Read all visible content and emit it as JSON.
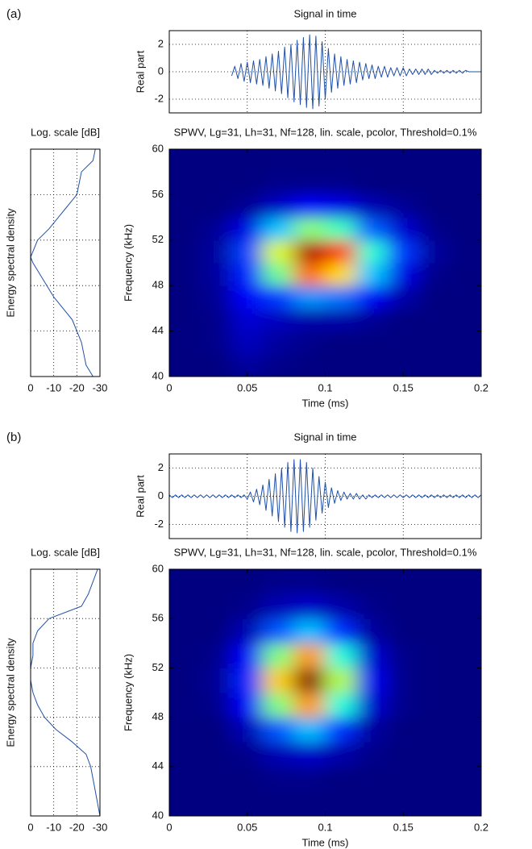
{
  "chart_data": [
    {
      "type": "line",
      "label": "(a)",
      "title": "Signal in time",
      "ylabel": "Real part",
      "color": "#2050a8",
      "grid": true,
      "xtick_labels": false,
      "xlim": [
        0,
        0.2
      ],
      "ylim": [
        -3,
        3
      ],
      "xticks": [
        0.05,
        0.1,
        0.15
      ],
      "yticks": [
        -2,
        0,
        2
      ],
      "x": [
        0,
        0.002,
        0.004,
        0.006,
        0.008,
        0.01,
        0.012,
        0.014,
        0.016,
        0.018,
        0.02,
        0.022,
        0.024,
        0.026,
        0.028,
        0.03,
        0.032,
        0.034,
        0.036,
        0.038,
        0.04,
        0.042,
        0.044,
        0.046,
        0.048,
        0.05,
        0.052,
        0.054,
        0.056,
        0.058,
        0.06,
        0.062,
        0.064,
        0.066,
        0.068,
        0.07,
        0.072,
        0.074,
        0.076,
        0.078,
        0.08,
        0.082,
        0.084,
        0.086,
        0.088,
        0.09,
        0.092,
        0.094,
        0.096,
        0.098,
        0.1,
        0.102,
        0.104,
        0.106,
        0.108,
        0.11,
        0.112,
        0.114,
        0.116,
        0.118,
        0.12,
        0.122,
        0.124,
        0.126,
        0.128,
        0.13,
        0.132,
        0.134,
        0.136,
        0.138,
        0.14,
        0.142,
        0.144,
        0.146,
        0.148,
        0.15,
        0.152,
        0.154,
        0.156,
        0.158,
        0.16,
        0.162,
        0.164,
        0.166,
        0.168,
        0.17,
        0.172,
        0.174,
        0.176,
        0.178,
        0.18,
        0.182,
        0.184,
        0.186,
        0.188,
        0.19,
        0.192,
        0.194,
        0.196,
        0.198,
        0.2
      ],
      "values": [
        null,
        null,
        null,
        null,
        null,
        null,
        null,
        null,
        null,
        null,
        null,
        null,
        null,
        null,
        null,
        null,
        null,
        null,
        null,
        null,
        -0.3,
        0.4,
        -0.5,
        0.6,
        -0.7,
        0.7,
        -0.8,
        0.8,
        -0.9,
        0.9,
        -1.0,
        1.1,
        -1.2,
        1.3,
        -1.4,
        1.5,
        -1.6,
        1.8,
        -1.9,
        2.0,
        -2.2,
        2.3,
        -2.4,
        2.5,
        -2.6,
        2.7,
        -2.7,
        2.6,
        -2.5,
        2.2,
        -2.0,
        1.7,
        -1.5,
        1.3,
        -1.2,
        1.1,
        -1.0,
        0.9,
        -0.9,
        0.8,
        -0.8,
        0.7,
        -0.6,
        0.6,
        -0.5,
        0.5,
        -0.5,
        0.4,
        -0.4,
        0.4,
        -0.4,
        0.3,
        -0.3,
        0.3,
        -0.3,
        0.3,
        -0.3,
        0.2,
        -0.2,
        0.2,
        -0.2,
        0.2,
        -0.2,
        0.2,
        -0.2,
        0.1,
        -0.1,
        0.1,
        -0.1,
        0.1,
        -0.1,
        0.1,
        -0.1,
        0.1,
        -0.1,
        0.1,
        0,
        0,
        0,
        0,
        0
      ]
    },
    {
      "type": "line",
      "orientation": "vertical",
      "title": "Log. scale [dB]",
      "ylabel": "Energy spectral density",
      "color": "#2050a8",
      "grid": true,
      "ytick_labels": false,
      "xlim": [
        0,
        -30
      ],
      "ylim": [
        40,
        60
      ],
      "xticks": [
        0,
        -10,
        -20,
        -30
      ],
      "yticks": [
        44,
        48,
        52,
        56
      ],
      "y": [
        40,
        41,
        42,
        43,
        44,
        45,
        46,
        47,
        48,
        49,
        50,
        50.5,
        51,
        52,
        53,
        54,
        55,
        56,
        57,
        58,
        59,
        60
      ],
      "values": [
        -27,
        -24,
        -23,
        -22,
        -20,
        -18,
        -14,
        -10,
        -7,
        -4,
        -1,
        0,
        -1,
        -3,
        -8,
        -12,
        -16,
        -20,
        -21,
        -22,
        -27,
        -28
      ]
    },
    {
      "type": "heatmap",
      "title": "SPWV, Lg=31, Lh=31, Nf=128, lin. scale, pcolor, Threshold=0.1%",
      "xlabel": "Time (ms)",
      "ylabel": "Frequency (kHz)",
      "colormap": "jet",
      "xlim": [
        0,
        0.2
      ],
      "ylim": [
        40,
        60
      ],
      "xticks": [
        0,
        0.05,
        0.1,
        0.15,
        0.2
      ],
      "yticks": [
        40,
        44,
        48,
        52,
        56,
        60
      ],
      "x": [
        0.01,
        0.03,
        0.05,
        0.07,
        0.09,
        0.11,
        0.13,
        0.15,
        0.17,
        0.19
      ],
      "y": [
        41,
        43,
        45,
        47,
        49,
        51,
        53,
        55,
        57,
        59
      ],
      "z": [
        [
          0,
          0,
          0.03,
          0.01,
          0,
          0,
          0,
          0,
          0,
          0
        ],
        [
          0,
          0.01,
          0.06,
          0.03,
          0.01,
          0,
          0,
          0,
          0,
          0
        ],
        [
          0,
          0.01,
          0.08,
          0.06,
          0.04,
          0.04,
          0.02,
          0,
          0,
          0
        ],
        [
          0,
          0.02,
          0.12,
          0.18,
          0.27,
          0.24,
          0.12,
          0.04,
          0,
          0
        ],
        [
          0,
          0.03,
          0.16,
          0.48,
          0.77,
          0.66,
          0.32,
          0.1,
          0.01,
          0
        ],
        [
          0,
          0.03,
          0.19,
          0.59,
          0.95,
          0.81,
          0.42,
          0.18,
          0.03,
          0
        ],
        [
          0,
          0.02,
          0.1,
          0.32,
          0.51,
          0.44,
          0.22,
          0.08,
          0.01,
          0
        ],
        [
          0,
          0,
          0.02,
          0.07,
          0.12,
          0.1,
          0.05,
          0.02,
          0,
          0
        ],
        [
          0,
          0,
          0,
          0.01,
          0.01,
          0.01,
          0,
          0,
          0,
          0
        ],
        [
          0,
          0,
          0,
          0,
          0,
          0,
          0,
          0,
          0,
          0
        ]
      ]
    },
    {
      "type": "line",
      "label": "(b)",
      "title": "Signal in time",
      "ylabel": "Real part",
      "color": "#2050a8",
      "grid": true,
      "xtick_labels": false,
      "xlim": [
        0,
        0.2
      ],
      "ylim": [
        -3,
        3
      ],
      "xticks": [
        0.05,
        0.1,
        0.15
      ],
      "yticks": [
        -2,
        0,
        2
      ],
      "x": [
        0,
        0.002,
        0.004,
        0.006,
        0.008,
        0.01,
        0.012,
        0.014,
        0.016,
        0.018,
        0.02,
        0.022,
        0.024,
        0.026,
        0.028,
        0.03,
        0.032,
        0.034,
        0.036,
        0.038,
        0.04,
        0.042,
        0.044,
        0.046,
        0.048,
        0.05,
        0.052,
        0.054,
        0.056,
        0.058,
        0.06,
        0.062,
        0.064,
        0.066,
        0.068,
        0.07,
        0.072,
        0.074,
        0.076,
        0.078,
        0.08,
        0.082,
        0.084,
        0.086,
        0.088,
        0.09,
        0.092,
        0.094,
        0.096,
        0.098,
        0.1,
        0.102,
        0.104,
        0.106,
        0.108,
        0.11,
        0.112,
        0.114,
        0.116,
        0.118,
        0.12,
        0.122,
        0.124,
        0.126,
        0.128,
        0.13,
        0.132,
        0.134,
        0.136,
        0.138,
        0.14,
        0.142,
        0.144,
        0.146,
        0.148,
        0.15,
        0.152,
        0.154,
        0.156,
        0.158,
        0.16,
        0.162,
        0.164,
        0.166,
        0.168,
        0.17,
        0.172,
        0.174,
        0.176,
        0.178,
        0.18,
        0.182,
        0.184,
        0.186,
        0.188,
        0.19,
        0.192,
        0.194,
        0.196,
        0.198,
        0.2
      ],
      "values": [
        0.1,
        -0.1,
        0.1,
        -0.1,
        0.1,
        -0.1,
        0.1,
        -0.1,
        0.1,
        -0.1,
        0.1,
        -0.1,
        0.1,
        -0.1,
        0.1,
        -0.1,
        0.1,
        -0.1,
        0.1,
        -0.1,
        0.1,
        -0.1,
        0.1,
        -0.1,
        0.1,
        -0.2,
        0.3,
        -0.4,
        0.5,
        -0.6,
        0.8,
        -1.0,
        1.2,
        -1.4,
        1.6,
        -1.8,
        2.0,
        -2.2,
        2.4,
        -2.5,
        2.6,
        -2.6,
        2.6,
        -2.5,
        2.4,
        -2.2,
        2.0,
        -1.7,
        1.4,
        -1.2,
        1.0,
        -0.8,
        0.6,
        -0.5,
        0.4,
        -0.3,
        0.3,
        -0.2,
        0.2,
        -0.2,
        0.2,
        -0.2,
        0.1,
        -0.2,
        0.1,
        -0.1,
        0.1,
        -0.1,
        0.1,
        -0.1,
        0.1,
        -0.1,
        0.1,
        -0.1,
        0.1,
        -0.1,
        0.1,
        -0.1,
        0.1,
        -0.1,
        0.1,
        -0.1,
        0.1,
        -0.1,
        0.1,
        -0.1,
        0.1,
        -0.1,
        0.1,
        -0.1,
        0.1,
        -0.1,
        0.1,
        -0.1,
        0.1,
        -0.1,
        0.1,
        -0.1,
        0.1,
        -0.1,
        0.1
      ]
    },
    {
      "type": "line",
      "orientation": "vertical",
      "title": "Log. scale [dB]",
      "ylabel": "Energy spectral density",
      "color": "#2050a8",
      "grid": true,
      "ytick_labels": false,
      "xlim": [
        0,
        -30
      ],
      "ylim": [
        40,
        60
      ],
      "xticks": [
        0,
        -10,
        -20,
        -30
      ],
      "yticks": [
        44,
        48,
        52,
        56
      ],
      "y": [
        40,
        41,
        42,
        43,
        44,
        45,
        46,
        47,
        48,
        49,
        50,
        51,
        52,
        53,
        54,
        55,
        56,
        57,
        58,
        59,
        60
      ],
      "values": [
        -30,
        -29,
        -28,
        -27,
        -26,
        -24,
        -18,
        -11,
        -6,
        -3,
        -1,
        0,
        0,
        -1,
        -1,
        -3,
        -8,
        -22,
        -25,
        -27,
        -29
      ]
    },
    {
      "type": "heatmap",
      "title": "SPWV, Lg=31, Lh=31, Nf=128, lin. scale, pcolor, Threshold=0.1%",
      "xlabel": "Time (ms)",
      "ylabel": "Frequency (kHz)",
      "colormap": "jet",
      "xlim": [
        0,
        0.2
      ],
      "ylim": [
        40,
        60
      ],
      "xticks": [
        0,
        0.05,
        0.1,
        0.15,
        0.2
      ],
      "yticks": [
        40,
        44,
        48,
        52,
        56,
        60
      ],
      "x": [
        0.01,
        0.03,
        0.05,
        0.07,
        0.09,
        0.11,
        0.13,
        0.15,
        0.17,
        0.19
      ],
      "y": [
        41,
        43,
        45,
        47,
        49,
        51,
        53,
        55,
        57,
        59
      ],
      "z": [
        [
          0,
          0,
          0,
          0,
          0,
          0,
          0,
          0,
          0,
          0
        ],
        [
          0,
          0,
          0,
          0.01,
          0.01,
          0,
          0,
          0,
          0,
          0
        ],
        [
          0,
          0,
          0.01,
          0.05,
          0.07,
          0.04,
          0.01,
          0,
          0,
          0
        ],
        [
          0,
          0,
          0.05,
          0.21,
          0.31,
          0.17,
          0.03,
          0,
          0,
          0
        ],
        [
          0,
          0.01,
          0.12,
          0.5,
          0.73,
          0.41,
          0.08,
          0.01,
          0,
          0
        ],
        [
          0,
          0.02,
          0.16,
          0.67,
          0.99,
          0.55,
          0.11,
          0.01,
          0,
          0
        ],
        [
          0,
          0.01,
          0.12,
          0.5,
          0.73,
          0.41,
          0.08,
          0.01,
          0,
          0
        ],
        [
          0,
          0,
          0.05,
          0.21,
          0.31,
          0.17,
          0.03,
          0,
          0,
          0
        ],
        [
          0,
          0,
          0.01,
          0.05,
          0.07,
          0.04,
          0.01,
          0,
          0,
          0
        ],
        [
          0,
          0,
          0,
          0.01,
          0.01,
          0,
          0,
          0,
          0,
          0
        ]
      ]
    }
  ]
}
